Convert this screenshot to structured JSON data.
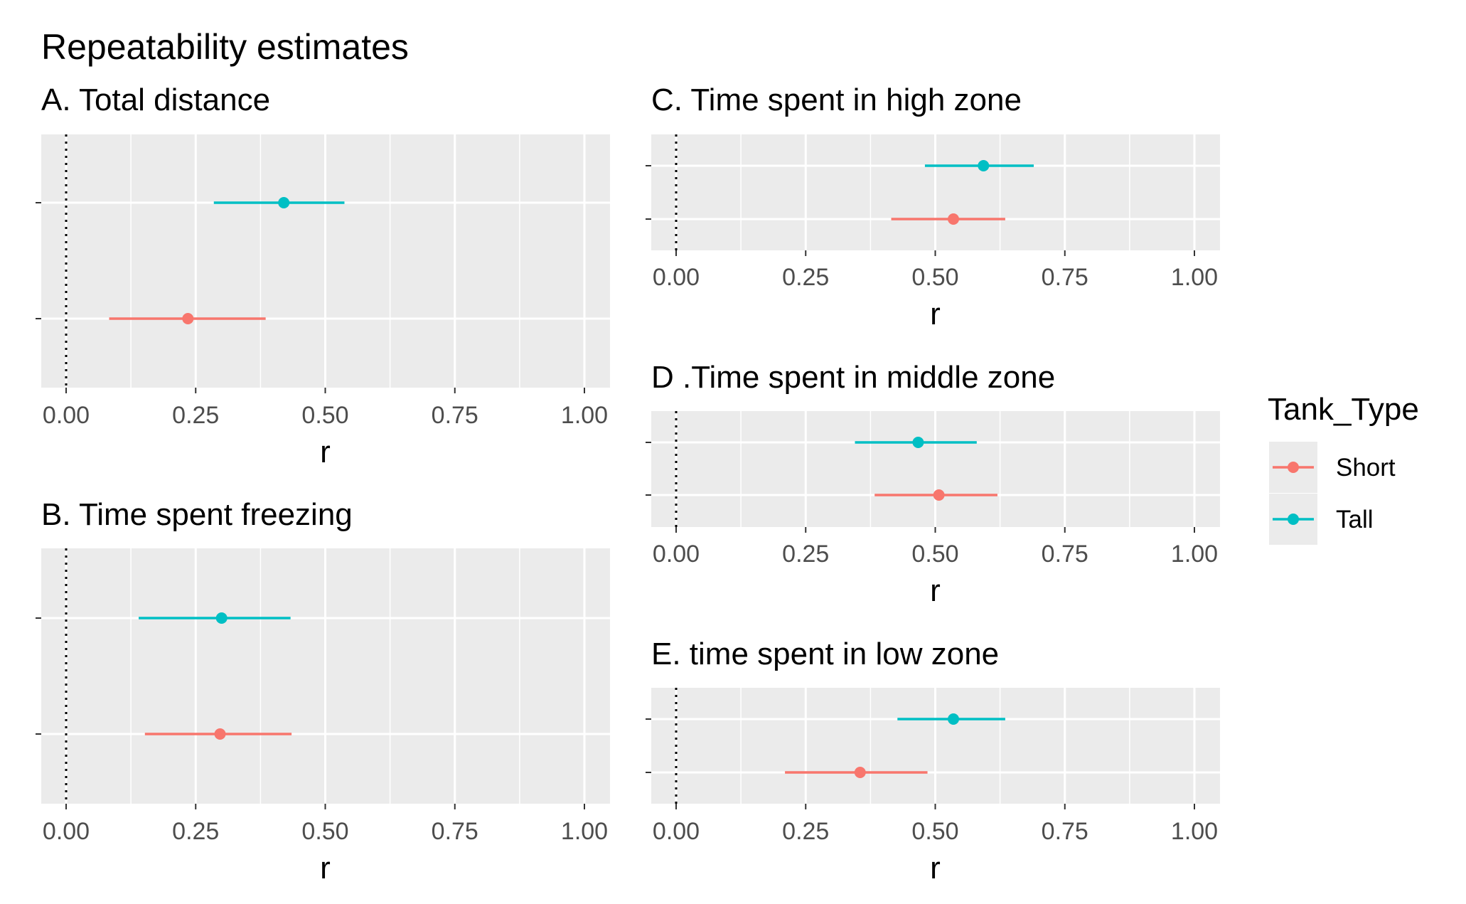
{
  "title": "Repeatability estimates",
  "colors": {
    "Short": "#F8766D",
    "Tall": "#00BFC4",
    "panel_bg": "#EBEBEB",
    "grid": "#FFFFFF",
    "axis_text": "#4D4D4D"
  },
  "legend": {
    "title": "Tank_Type",
    "entries": [
      {
        "label": "Short",
        "color": "#F8766D"
      },
      {
        "label": "Tall",
        "color": "#00BFC4"
      }
    ],
    "placement": "right"
  },
  "chart_data": [
    {
      "type": "scatter",
      "title": "A. Total distance",
      "xlabel": "r",
      "ylabel": "",
      "xlim": [
        0,
        1
      ],
      "x_ticks": [
        "0.00",
        "0.25",
        "0.50",
        "0.75",
        "1.00"
      ],
      "reference_line_x": 0,
      "grid": true,
      "series": [
        {
          "name": "Short",
          "estimate": 0.235,
          "ci": [
            0.083,
            0.385
          ]
        },
        {
          "name": "Tall",
          "estimate": 0.42,
          "ci": [
            0.285,
            0.537
          ]
        }
      ]
    },
    {
      "type": "scatter",
      "title": "B. Time spent freezing",
      "xlabel": "r",
      "ylabel": "",
      "xlim": [
        0,
        1
      ],
      "x_ticks": [
        "0.00",
        "0.25",
        "0.50",
        "0.75",
        "1.00"
      ],
      "reference_line_x": 0,
      "grid": true,
      "series": [
        {
          "name": "Short",
          "estimate": 0.297,
          "ci": [
            0.152,
            0.435
          ]
        },
        {
          "name": "Tall",
          "estimate": 0.3,
          "ci": [
            0.14,
            0.433
          ]
        }
      ]
    },
    {
      "type": "scatter",
      "title": "C. Time spent in high zone",
      "xlabel": "r",
      "ylabel": "",
      "xlim": [
        0,
        1
      ],
      "x_ticks": [
        "0.00",
        "0.25",
        "0.50",
        "0.75",
        "1.00"
      ],
      "reference_line_x": 0,
      "grid": true,
      "series": [
        {
          "name": "Short",
          "estimate": 0.535,
          "ci": [
            0.415,
            0.635
          ]
        },
        {
          "name": "Tall",
          "estimate": 0.593,
          "ci": [
            0.48,
            0.69
          ]
        }
      ]
    },
    {
      "type": "scatter",
      "title": "D .Time spent in middle zone",
      "xlabel": "r",
      "ylabel": "",
      "xlim": [
        0,
        1
      ],
      "x_ticks": [
        "0.00",
        "0.25",
        "0.50",
        "0.75",
        "1.00"
      ],
      "reference_line_x": 0,
      "grid": true,
      "series": [
        {
          "name": "Short",
          "estimate": 0.507,
          "ci": [
            0.383,
            0.62
          ]
        },
        {
          "name": "Tall",
          "estimate": 0.467,
          "ci": [
            0.345,
            0.58
          ]
        }
      ]
    },
    {
      "type": "scatter",
      "title": "E. time spent in low zone",
      "xlabel": "r",
      "ylabel": "",
      "xlim": [
        0,
        1
      ],
      "x_ticks": [
        "0.00",
        "0.25",
        "0.50",
        "0.75",
        "1.00"
      ],
      "reference_line_x": 0,
      "grid": true,
      "series": [
        {
          "name": "Short",
          "estimate": 0.355,
          "ci": [
            0.21,
            0.485
          ]
        },
        {
          "name": "Tall",
          "estimate": 0.535,
          "ci": [
            0.427,
            0.635
          ]
        }
      ]
    }
  ]
}
